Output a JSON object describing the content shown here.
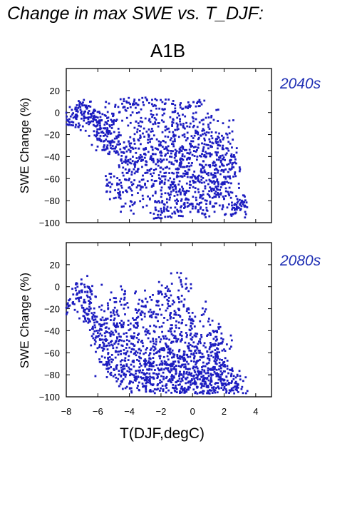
{
  "header": {
    "title": "Change in max SWE vs. T_DJF:",
    "scenario": "A1B"
  },
  "colors": {
    "points": "#1c1cc0",
    "period_label": "#1f2fb4"
  },
  "chart_data": [
    {
      "type": "scatter",
      "period_label": "2040s",
      "xlabel": "",
      "ylabel": "SWE Change (%)",
      "xlim": [
        -8,
        5
      ],
      "ylim": [
        -100,
        40
      ],
      "xticks": [
        -8,
        -6,
        -4,
        -2,
        0,
        2,
        4
      ],
      "yticks": [
        -100,
        -80,
        -60,
        -40,
        -20,
        0,
        20
      ],
      "x_ticklabels_visible": false,
      "approx_point_count": 1500,
      "points": [
        [
          -7.8,
          -6
        ],
        [
          -7.3,
          -3
        ],
        [
          -7.0,
          -2
        ],
        [
          -6.8,
          1
        ],
        [
          -6.6,
          -1
        ],
        [
          -6.3,
          -8
        ],
        [
          -6.1,
          -4
        ],
        [
          -5.9,
          -15
        ],
        [
          -5.8,
          -26
        ],
        [
          -5.5,
          -3
        ],
        [
          -5.4,
          -18
        ],
        [
          -5.2,
          -30
        ],
        [
          -5.1,
          -65
        ],
        [
          -5.0,
          -9
        ],
        [
          -4.8,
          -35
        ],
        [
          -4.7,
          -22
        ],
        [
          -4.6,
          -72
        ],
        [
          -4.4,
          -50
        ],
        [
          -4.3,
          5
        ],
        [
          -4.2,
          -40
        ],
        [
          -4.0,
          -60
        ],
        [
          -3.9,
          -28
        ],
        [
          -3.8,
          -84
        ],
        [
          -3.7,
          10
        ],
        [
          -3.5,
          -45
        ],
        [
          -3.4,
          -12
        ],
        [
          -3.3,
          -70
        ],
        [
          -3.1,
          -33
        ],
        [
          -3.0,
          -55
        ],
        [
          -2.9,
          12
        ],
        [
          -2.8,
          -20
        ],
        [
          -2.7,
          -78
        ],
        [
          -2.5,
          -42
        ],
        [
          -2.4,
          -5
        ],
        [
          -2.3,
          -62
        ],
        [
          -2.2,
          -93
        ],
        [
          -2.1,
          -30
        ],
        [
          -2.0,
          -50
        ],
        [
          -1.9,
          3
        ],
        [
          -1.8,
          -88
        ],
        [
          -1.7,
          -38
        ],
        [
          -1.6,
          -15
        ],
        [
          -1.5,
          -68
        ],
        [
          -1.4,
          -25
        ],
        [
          -1.3,
          8
        ],
        [
          -1.2,
          -47
        ],
        [
          -1.1,
          -80
        ],
        [
          -1.0,
          -35
        ],
        [
          -0.9,
          -58
        ],
        [
          -0.8,
          -8
        ],
        [
          -0.7,
          -90
        ],
        [
          -0.6,
          -43
        ],
        [
          -0.5,
          -22
        ],
        [
          -0.4,
          -72
        ],
        [
          -0.3,
          4
        ],
        [
          -0.2,
          -52
        ],
        [
          -0.1,
          -31
        ],
        [
          0.0,
          -83
        ],
        [
          0.1,
          -12
        ],
        [
          0.2,
          -60
        ],
        [
          0.3,
          -40
        ],
        [
          0.4,
          10
        ],
        [
          0.5,
          -75
        ],
        [
          0.6,
          -28
        ],
        [
          0.7,
          -50
        ],
        [
          0.8,
          -92
        ],
        [
          0.9,
          -18
        ],
        [
          1.0,
          -65
        ],
        [
          1.1,
          -37
        ],
        [
          1.2,
          -3
        ],
        [
          1.3,
          -85
        ],
        [
          1.4,
          -55
        ],
        [
          1.5,
          -24
        ],
        [
          1.6,
          -70
        ],
        [
          1.8,
          -45
        ],
        [
          1.9,
          -32
        ],
        [
          2.0,
          -78
        ],
        [
          2.1,
          -60
        ],
        [
          2.2,
          -20
        ],
        [
          2.4,
          -52
        ],
        [
          2.5,
          -88
        ],
        [
          2.6,
          -40
        ],
        [
          2.8,
          -86
        ],
        [
          3.0,
          -83
        ],
        [
          3.2,
          -81
        ]
      ]
    },
    {
      "type": "scatter",
      "period_label": "2080s",
      "xlabel": "T(DJF,degC)",
      "ylabel": "SWE Change (%)",
      "xlim": [
        -8,
        5
      ],
      "ylim": [
        -100,
        40
      ],
      "xticks": [
        -8,
        -6,
        -4,
        -2,
        0,
        2,
        4
      ],
      "xticklabels": [
        "−8",
        "−6",
        "−4",
        "−2",
        "0",
        "2",
        "4"
      ],
      "yticks": [
        -100,
        -80,
        -60,
        -40,
        -20,
        0,
        20
      ],
      "approx_point_count": 1500,
      "points": [
        [
          -7.9,
          -15
        ],
        [
          -7.3,
          -6
        ],
        [
          -7.0,
          -5
        ],
        [
          -6.8,
          -21
        ],
        [
          -6.6,
          -25
        ],
        [
          -6.4,
          -4
        ],
        [
          -6.2,
          -35
        ],
        [
          -6.0,
          -42
        ],
        [
          -5.9,
          -55
        ],
        [
          -5.7,
          -28
        ],
        [
          -5.5,
          -48
        ],
        [
          -5.4,
          -70
        ],
        [
          -5.3,
          -38
        ],
        [
          -5.1,
          -62
        ],
        [
          -5.0,
          -22
        ],
        [
          -4.9,
          -80
        ],
        [
          -4.7,
          -52
        ],
        [
          -4.6,
          -33
        ],
        [
          -4.4,
          -75
        ],
        [
          -4.3,
          -10
        ],
        [
          -4.2,
          -60
        ],
        [
          -4.0,
          -88
        ],
        [
          -3.9,
          -45
        ],
        [
          -3.8,
          -68
        ],
        [
          -3.6,
          -30
        ],
        [
          -3.5,
          -92
        ],
        [
          -3.4,
          -57
        ],
        [
          -3.2,
          -78
        ],
        [
          -3.1,
          -18
        ],
        [
          -3.0,
          -66
        ],
        [
          -2.9,
          -85
        ],
        [
          -2.8,
          -40
        ],
        [
          -2.6,
          -72
        ],
        [
          -2.5,
          -95
        ],
        [
          -2.4,
          -55
        ],
        [
          -2.3,
          -25
        ],
        [
          -2.2,
          -82
        ],
        [
          -2.1,
          -63
        ],
        [
          -2.0,
          -5
        ],
        [
          -1.9,
          -90
        ],
        [
          -1.8,
          -47
        ],
        [
          -1.7,
          -74
        ],
        [
          -1.6,
          -12
        ],
        [
          -1.5,
          -60
        ],
        [
          -1.4,
          -86
        ],
        [
          -1.3,
          -35
        ],
        [
          -1.2,
          -70
        ],
        [
          -1.1,
          -95
        ],
        [
          -1.0,
          -50
        ],
        [
          -0.9,
          -20
        ],
        [
          -0.8,
          -80
        ],
        [
          -0.7,
          2
        ],
        [
          -0.6,
          -65
        ],
        [
          -0.5,
          -92
        ],
        [
          -0.4,
          -42
        ],
        [
          -0.3,
          -75
        ],
        [
          -0.2,
          -58
        ],
        [
          -0.1,
          -30
        ],
        [
          0.0,
          -88
        ],
        [
          0.1,
          -68
        ],
        [
          0.2,
          -45
        ],
        [
          0.3,
          -97
        ],
        [
          0.4,
          -78
        ],
        [
          0.5,
          -60
        ],
        [
          0.6,
          -90
        ],
        [
          0.7,
          -25
        ],
        [
          0.8,
          -83
        ],
        [
          0.9,
          -70
        ],
        [
          1.0,
          -96
        ],
        [
          1.1,
          -55
        ],
        [
          1.2,
          -86
        ],
        [
          1.3,
          -40
        ],
        [
          1.4,
          -75
        ],
        [
          1.5,
          -92
        ],
        [
          1.6,
          -65
        ],
        [
          1.8,
          -80
        ],
        [
          1.9,
          -50
        ],
        [
          2.0,
          -88
        ],
        [
          2.2,
          -72
        ],
        [
          2.4,
          -95
        ],
        [
          2.6,
          -84
        ],
        [
          2.8,
          -91
        ],
        [
          3.1,
          -93
        ]
      ]
    }
  ]
}
